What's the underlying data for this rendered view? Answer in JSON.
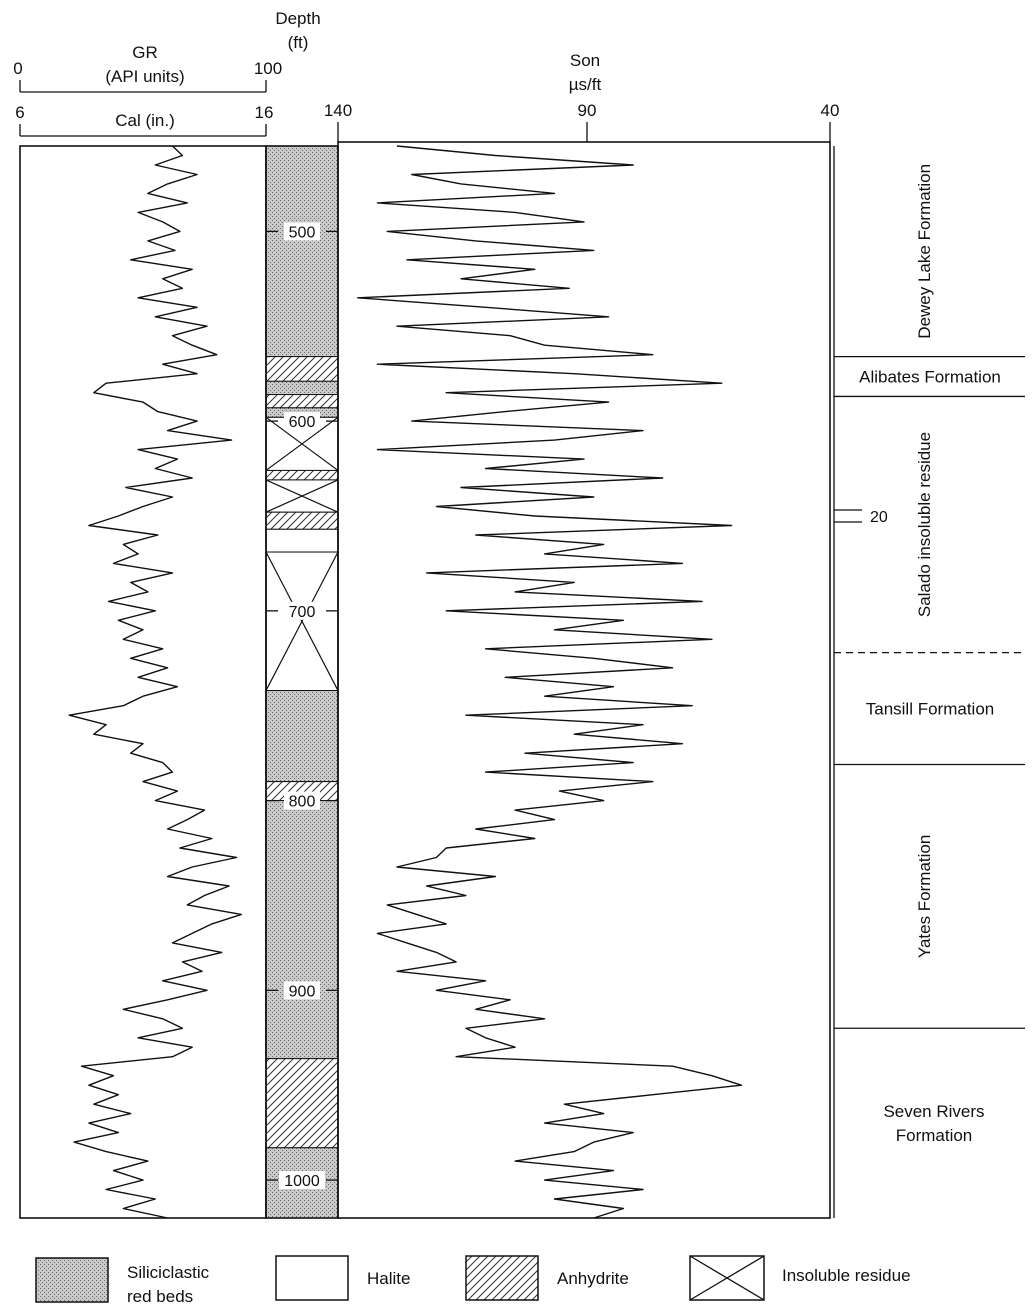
{
  "chart_data": {
    "type": "well-log",
    "depth_axis": {
      "title_line1": "Depth",
      "title_line2": "(ft)",
      "range": [
        455,
        1020
      ],
      "ticks": [
        {
          "value": 500,
          "label": "500"
        },
        {
          "value": 600,
          "label": "600"
        },
        {
          "value": 700,
          "label": "700"
        },
        {
          "value": 800,
          "label": "800"
        },
        {
          "value": 900,
          "label": "900"
        },
        {
          "value": 1000,
          "label": "1000"
        }
      ]
    },
    "gr_track": {
      "title_line1": "GR",
      "title_line2": "(API units)",
      "scale_min_label": "0",
      "scale_max_label": "100",
      "range": [
        0,
        100
      ],
      "cal_title": "Cal (in.)",
      "cal_min_label": "6",
      "cal_max_label": "16",
      "cal_range": [
        6,
        16
      ]
    },
    "son_track": {
      "title_line1": "Son",
      "title_line2": "µs/ft",
      "tick_left": "140",
      "tick_mid": "90",
      "tick_right": "40",
      "range": [
        140,
        40
      ]
    },
    "lithology_column": [
      {
        "top": 455,
        "bottom": 566,
        "lith": "siliciclastic"
      },
      {
        "top": 566,
        "bottom": 579,
        "lith": "anhydrite"
      },
      {
        "top": 579,
        "bottom": 586,
        "lith": "siliciclastic"
      },
      {
        "top": 586,
        "bottom": 593,
        "lith": "anhydrite"
      },
      {
        "top": 593,
        "bottom": 598,
        "lith": "siliciclastic"
      },
      {
        "top": 598,
        "bottom": 626,
        "lith": "insoluble"
      },
      {
        "top": 626,
        "bottom": 631,
        "lith": "anhydrite"
      },
      {
        "top": 631,
        "bottom": 648,
        "lith": "insoluble"
      },
      {
        "top": 648,
        "bottom": 657,
        "lith": "anhydrite"
      },
      {
        "top": 657,
        "bottom": 669,
        "lith": "halite"
      },
      {
        "top": 669,
        "bottom": 742,
        "lith": "insoluble"
      },
      {
        "top": 742,
        "bottom": 790,
        "lith": "siliciclastic"
      },
      {
        "top": 790,
        "bottom": 800,
        "lith": "anhydrite"
      },
      {
        "top": 800,
        "bottom": 936,
        "lith": "siliciclastic"
      },
      {
        "top": 936,
        "bottom": 983,
        "lith": "anhydrite"
      },
      {
        "top": 983,
        "bottom": 1020,
        "lith": "siliciclastic"
      }
    ],
    "gr_log": {
      "depth": [
        455,
        460,
        465,
        470,
        475,
        480,
        485,
        490,
        495,
        500,
        505,
        510,
        515,
        520,
        525,
        530,
        535,
        540,
        545,
        550,
        555,
        560,
        565,
        570,
        575,
        580,
        585,
        590,
        595,
        600,
        605,
        610,
        615,
        620,
        625,
        630,
        635,
        640,
        645,
        650,
        655,
        660,
        665,
        670,
        675,
        680,
        685,
        690,
        695,
        700,
        705,
        710,
        715,
        720,
        725,
        730,
        735,
        740,
        745,
        750,
        755,
        760,
        765,
        770,
        775,
        780,
        785,
        790,
        795,
        800,
        805,
        810,
        815,
        820,
        825,
        830,
        835,
        840,
        845,
        850,
        855,
        860,
        865,
        870,
        875,
        880,
        885,
        890,
        895,
        900,
        905,
        910,
        915,
        920,
        925,
        930,
        935,
        940,
        945,
        950,
        955,
        960,
        965,
        970,
        975,
        980,
        985,
        990,
        995,
        1000,
        1005,
        1010,
        1015,
        1020
      ],
      "value": [
        62,
        66,
        55,
        72,
        60,
        52,
        68,
        48,
        58,
        65,
        52,
        63,
        45,
        70,
        58,
        66,
        48,
        72,
        55,
        76,
        62,
        70,
        80,
        58,
        72,
        35,
        30,
        50,
        56,
        72,
        60,
        86,
        48,
        64,
        55,
        70,
        43,
        62,
        50,
        40,
        28,
        56,
        42,
        48,
        38,
        62,
        45,
        52,
        36,
        55,
        40,
        50,
        42,
        58,
        45,
        60,
        48,
        64,
        50,
        42,
        20,
        35,
        30,
        50,
        45,
        58,
        62,
        50,
        64,
        55,
        75,
        68,
        60,
        78,
        65,
        88,
        70,
        60,
        85,
        75,
        68,
        90,
        78,
        70,
        62,
        82,
        66,
        74,
        58,
        76,
        60,
        42,
        58,
        66,
        48,
        70,
        62,
        25,
        38,
        28,
        40,
        30,
        45,
        28,
        40,
        22,
        35,
        52,
        38,
        50,
        35,
        55,
        42,
        60
      ]
    },
    "son_log": {
      "depth": [
        455,
        460,
        465,
        470,
        475,
        480,
        485,
        490,
        495,
        500,
        505,
        510,
        515,
        520,
        525,
        530,
        535,
        540,
        545,
        550,
        555,
        560,
        565,
        570,
        575,
        580,
        585,
        590,
        595,
        600,
        605,
        610,
        615,
        620,
        625,
        630,
        635,
        640,
        645,
        650,
        655,
        660,
        665,
        670,
        675,
        680,
        685,
        690,
        695,
        700,
        705,
        710,
        715,
        720,
        725,
        730,
        735,
        740,
        745,
        750,
        755,
        760,
        765,
        770,
        775,
        780,
        785,
        790,
        795,
        800,
        805,
        810,
        815,
        820,
        825,
        830,
        835,
        840,
        845,
        850,
        855,
        860,
        865,
        870,
        875,
        880,
        885,
        890,
        895,
        900,
        905,
        910,
        915,
        920,
        925,
        930,
        935,
        940,
        945,
        950,
        955,
        960,
        965,
        970,
        975,
        980,
        985,
        990,
        995,
        1000,
        1005,
        1010,
        1015,
        1020
      ],
      "value": [
        128,
        108,
        80,
        125,
        115,
        96,
        132,
        104,
        90,
        130,
        112,
        88,
        126,
        100,
        115,
        93,
        136,
        110,
        85,
        128,
        105,
        98,
        76,
        132,
        92,
        62,
        118,
        85,
        106,
        125,
        78,
        96,
        132,
        90,
        110,
        74,
        115,
        88,
        120,
        100,
        60,
        112,
        86,
        98,
        70,
        122,
        92,
        104,
        66,
        118,
        82,
        96,
        64,
        110,
        88,
        72,
        106,
        84,
        98,
        68,
        114,
        78,
        92,
        70,
        102,
        80,
        110,
        76,
        95,
        86,
        104,
        96,
        112,
        100,
        118,
        120,
        128,
        108,
        122,
        114,
        130,
        124,
        118,
        132,
        126,
        120,
        116,
        128,
        110,
        120,
        105,
        112,
        98,
        114,
        110,
        104,
        116,
        72,
        64,
        58,
        76,
        94,
        86,
        98,
        80,
        88,
        92,
        104,
        84,
        98,
        78,
        96,
        82,
        88
      ]
    },
    "formations": [
      {
        "name": "Dewey Lake Formation",
        "top": 455,
        "bottom": 566,
        "orientation": "vertical"
      },
      {
        "name": "Alibates Formation",
        "top": 566,
        "bottom": 587,
        "orientation": "horizontal"
      },
      {
        "name": "Salado insoluble residue",
        "top": 587,
        "bottom": 722,
        "orientation": "vertical"
      },
      {
        "name": "Tansill Formation",
        "top": 722,
        "bottom": 781,
        "orientation": "horizontal"
      },
      {
        "name": "Yates Formation",
        "top": 781,
        "bottom": 920,
        "orientation": "vertical"
      },
      {
        "name": "Seven Rivers Formation",
        "line1": "Seven Rivers",
        "line2": "Formation",
        "top": 920,
        "bottom": 1020,
        "orientation": "horizontal"
      }
    ],
    "marker": {
      "label": "20",
      "depth": 647
    },
    "legend": [
      {
        "key": "siliciclastic",
        "line1": "Siliciclastic",
        "line2": "red beds"
      },
      {
        "key": "halite",
        "line1": "Halite",
        "line2": ""
      },
      {
        "key": "anhydrite",
        "line1": "Anhydrite",
        "line2": ""
      },
      {
        "key": "insoluble",
        "line1": "Insoluble residue",
        "line2": ""
      }
    ]
  }
}
